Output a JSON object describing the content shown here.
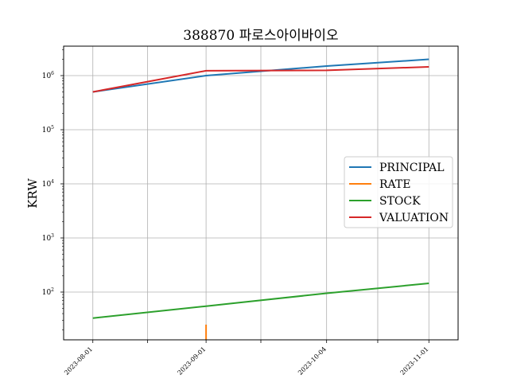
{
  "chart_data": {
    "type": "line",
    "title": "388870 파로스아이바이오",
    "xlabel": "",
    "ylabel": "KRW",
    "y_scale": "log",
    "grid": true,
    "legend_position": "center-right",
    "x_tick_labels": [
      "2023-08-01",
      "2023-09-01",
      "2023-10-04",
      "2023-11-01"
    ],
    "y_tick_labels": [
      {
        "base": "10",
        "exp": "2"
      },
      {
        "base": "10",
        "exp": "3"
      },
      {
        "base": "10",
        "exp": "4"
      },
      {
        "base": "10",
        "exp": "5"
      },
      {
        "base": "10",
        "exp": "6"
      }
    ],
    "series": [
      {
        "name": "PRINCIPAL",
        "color": "#1f77b4",
        "points": [
          [
            "2023-08-01",
            500000
          ],
          [
            "2023-09-01",
            1000000
          ],
          [
            "2023-10-04",
            1500000
          ],
          [
            "2023-11-01",
            2000000
          ]
        ]
      },
      {
        "name": "RATE",
        "color": "#ff7f0e",
        "points": [
          [
            "2023-09-01",
            25
          ],
          [
            "2023-09-01",
            10
          ]
        ]
      },
      {
        "name": "STOCK",
        "color": "#2ca02c",
        "points": [
          [
            "2023-08-01",
            33
          ],
          [
            "2023-09-01",
            55
          ],
          [
            "2023-10-04",
            95
          ],
          [
            "2023-11-01",
            145
          ]
        ]
      },
      {
        "name": "VALUATION",
        "color": "#d62728",
        "points": [
          [
            "2023-08-01",
            500000
          ],
          [
            "2023-09-01",
            1230000
          ],
          [
            "2023-10-04",
            1250000
          ],
          [
            "2023-11-01",
            1450000
          ]
        ]
      }
    ]
  }
}
